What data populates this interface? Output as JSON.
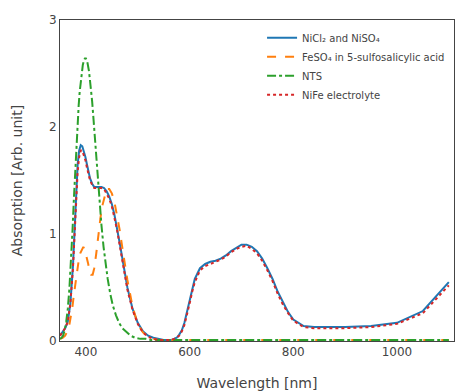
{
  "chart_data": {
    "type": "line",
    "xlabel": "Wavelength [nm]",
    "ylabel": "Absorption [Arb. unit]",
    "xlim": [
      350,
      1110
    ],
    "ylim": [
      0,
      3.0
    ],
    "xticks": [
      400,
      600,
      800,
      1000
    ],
    "yticks": [
      0,
      1,
      2,
      3
    ],
    "grid": false,
    "legend": "upper right",
    "series": [
      {
        "name": "NiCl₂ and NiSO₄",
        "line_style": "solid",
        "x": [
          350,
          355,
          360,
          365,
          370,
          375,
          378,
          381,
          384,
          387,
          390,
          393,
          396,
          399,
          402,
          405,
          408,
          412,
          416,
          420,
          425,
          430,
          435,
          440,
          445,
          450,
          455,
          460,
          465,
          470,
          475,
          480,
          490,
          500,
          510,
          520,
          530,
          540,
          550,
          560,
          565,
          570,
          575,
          580,
          585,
          590,
          595,
          600,
          605,
          610,
          620,
          630,
          640,
          650,
          660,
          670,
          680,
          690,
          700,
          710,
          720,
          730,
          740,
          750,
          760,
          770,
          780,
          790,
          800,
          820,
          840,
          860,
          880,
          900,
          950,
          1000,
          1050,
          1100
        ],
        "values": [
          0.05,
          0.08,
          0.12,
          0.18,
          0.35,
          0.7,
          1.05,
          1.4,
          1.65,
          1.78,
          1.83,
          1.82,
          1.78,
          1.72,
          1.65,
          1.58,
          1.52,
          1.47,
          1.44,
          1.44,
          1.44,
          1.44,
          1.43,
          1.4,
          1.35,
          1.28,
          1.18,
          1.06,
          0.92,
          0.78,
          0.63,
          0.5,
          0.3,
          0.17,
          0.09,
          0.05,
          0.03,
          0.02,
          0.01,
          0.01,
          0.01,
          0.02,
          0.03,
          0.06,
          0.1,
          0.17,
          0.27,
          0.38,
          0.5,
          0.58,
          0.68,
          0.72,
          0.74,
          0.75,
          0.77,
          0.8,
          0.84,
          0.87,
          0.9,
          0.9,
          0.88,
          0.84,
          0.77,
          0.68,
          0.58,
          0.46,
          0.36,
          0.27,
          0.2,
          0.14,
          0.13,
          0.13,
          0.13,
          0.13,
          0.14,
          0.17,
          0.28,
          0.55
        ]
      },
      {
        "name": "FeSO₄ in 5-sulfosalicylic acid",
        "line_style": "dash",
        "x": [
          350,
          355,
          360,
          365,
          368,
          371,
          374,
          377,
          380,
          383,
          386,
          389,
          392,
          395,
          398,
          401,
          404,
          407,
          410,
          413,
          416,
          420,
          424,
          428,
          432,
          436,
          440,
          445,
          450,
          455,
          460,
          465,
          470,
          475,
          480,
          490,
          500,
          510,
          520,
          530,
          540,
          550,
          560,
          570,
          580,
          590,
          600,
          620,
          650,
          700,
          800,
          900,
          1000,
          1100
        ],
        "values": [
          0.02,
          0.03,
          0.05,
          0.1,
          0.15,
          0.22,
          0.32,
          0.44,
          0.55,
          0.66,
          0.75,
          0.82,
          0.86,
          0.88,
          0.85,
          0.8,
          0.73,
          0.66,
          0.62,
          0.62,
          0.68,
          0.82,
          1.0,
          1.15,
          1.27,
          1.36,
          1.42,
          1.42,
          1.38,
          1.3,
          1.18,
          1.04,
          0.88,
          0.72,
          0.57,
          0.32,
          0.16,
          0.08,
          0.04,
          0.02,
          0.01,
          0.01,
          0.01,
          0.01,
          0.01,
          0.01,
          0.01,
          0.01,
          0.01,
          0.01,
          0.01,
          0.01,
          0.01,
          0.01
        ]
      },
      {
        "name": "NTS",
        "line_style": "dashdot",
        "x": [
          350,
          353,
          356,
          359,
          362,
          365,
          368,
          371,
          374,
          377,
          380,
          382,
          384,
          386,
          388,
          390,
          392,
          394,
          396,
          398,
          400,
          403,
          406,
          409,
          412,
          415,
          418,
          422,
          426,
          430,
          434,
          438,
          442,
          447,
          452,
          458,
          464,
          470,
          478,
          486,
          495,
          505,
          515,
          525,
          540,
          560,
          580,
          600,
          650,
          700,
          800,
          900,
          1000,
          1100
        ],
        "values": [
          0.02,
          0.03,
          0.05,
          0.1,
          0.18,
          0.3,
          0.48,
          0.72,
          1.02,
          1.35,
          1.68,
          1.88,
          2.05,
          2.2,
          2.33,
          2.44,
          2.52,
          2.58,
          2.62,
          2.64,
          2.64,
          2.6,
          2.52,
          2.4,
          2.24,
          2.05,
          1.84,
          1.58,
          1.32,
          1.08,
          0.88,
          0.72,
          0.58,
          0.44,
          0.33,
          0.24,
          0.17,
          0.12,
          0.08,
          0.05,
          0.03,
          0.02,
          0.02,
          0.01,
          0.01,
          0.01,
          0.01,
          0.01,
          0.01,
          0.01,
          0.01,
          0.01,
          0.01,
          0.01
        ]
      },
      {
        "name": "NiFe electrolyte",
        "line_style": "dot",
        "x": [
          350,
          355,
          360,
          365,
          370,
          375,
          378,
          381,
          384,
          387,
          390,
          393,
          396,
          399,
          402,
          405,
          408,
          412,
          416,
          420,
          425,
          430,
          435,
          440,
          445,
          450,
          455,
          460,
          465,
          470,
          475,
          480,
          490,
          500,
          510,
          520,
          530,
          540,
          550,
          560,
          565,
          570,
          575,
          580,
          585,
          590,
          595,
          600,
          605,
          610,
          620,
          630,
          640,
          650,
          660,
          670,
          680,
          690,
          700,
          710,
          720,
          730,
          740,
          750,
          760,
          770,
          780,
          790,
          800,
          820,
          840,
          860,
          880,
          900,
          950,
          1000,
          1050,
          1100
        ],
        "values": [
          0.05,
          0.08,
          0.12,
          0.18,
          0.35,
          0.68,
          1.0,
          1.32,
          1.58,
          1.72,
          1.78,
          1.78,
          1.74,
          1.69,
          1.62,
          1.56,
          1.5,
          1.46,
          1.43,
          1.43,
          1.43,
          1.43,
          1.42,
          1.38,
          1.33,
          1.26,
          1.16,
          1.04,
          0.9,
          0.76,
          0.61,
          0.48,
          0.29,
          0.16,
          0.08,
          0.04,
          0.02,
          0.01,
          0.01,
          0.01,
          0.01,
          0.02,
          0.03,
          0.05,
          0.09,
          0.15,
          0.24,
          0.35,
          0.46,
          0.55,
          0.66,
          0.7,
          0.72,
          0.74,
          0.76,
          0.79,
          0.83,
          0.86,
          0.88,
          0.89,
          0.86,
          0.82,
          0.75,
          0.66,
          0.56,
          0.44,
          0.34,
          0.26,
          0.19,
          0.13,
          0.12,
          0.12,
          0.12,
          0.12,
          0.13,
          0.16,
          0.26,
          0.52
        ]
      }
    ]
  }
}
